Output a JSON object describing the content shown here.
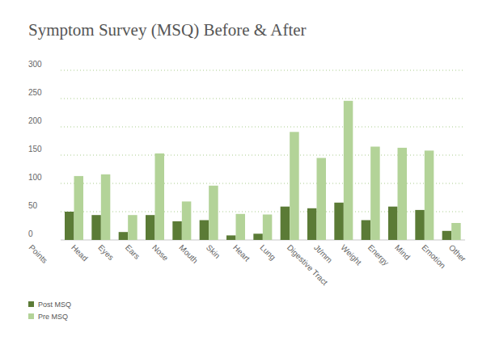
{
  "chart_data": {
    "type": "bar",
    "title": "Symptom Survey (MSQ) Before & After",
    "ylabel": "Points",
    "categories": [
      "Head",
      "Eyes",
      "Ears",
      "Nose",
      "Mouth",
      "Skin",
      "Heart",
      "Lung",
      "Digestive Tract",
      "Jt/mm",
      "Weight",
      "Energy",
      "Mind",
      "Emotion",
      "Other"
    ],
    "series": [
      {
        "name": "Post MSQ",
        "color": "#5b7b36",
        "values": [
          50,
          44,
          14,
          44,
          33,
          35,
          8,
          11,
          59,
          56,
          66,
          35,
          59,
          53,
          16
        ]
      },
      {
        "name": "Pre MSQ",
        "color": "#b3d398",
        "values": [
          113,
          116,
          44,
          153,
          68,
          96,
          46,
          45,
          191,
          145,
          246,
          165,
          163,
          158,
          30
        ]
      }
    ],
    "ylim": [
      0,
      300
    ],
    "yticks": [
      0,
      50,
      100,
      150,
      200,
      250,
      300
    ],
    "grid": true,
    "legend": "bottom-left"
  }
}
